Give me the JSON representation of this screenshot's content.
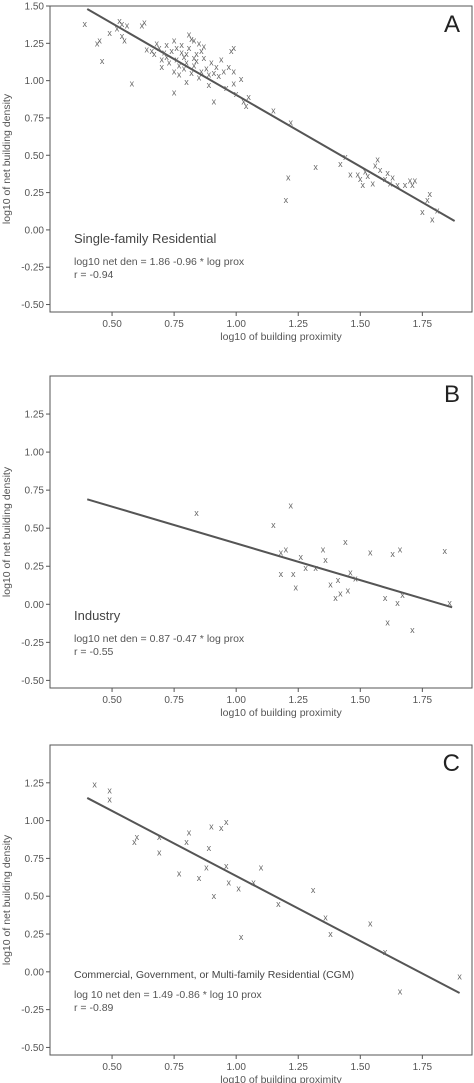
{
  "chart_data": [
    {
      "type": "scatter",
      "panel_label": "A",
      "xlabel": "log10 of building proximity",
      "ylabel": "log10 of net building density",
      "xlim": [
        0.25,
        1.95
      ],
      "ylim": [
        -0.55,
        1.5
      ],
      "xticks": [
        0.5,
        0.75,
        1.0,
        1.25,
        1.5,
        1.75
      ],
      "yticks": [
        -0.5,
        -0.25,
        0.0,
        0.25,
        0.5,
        0.75,
        1.0,
        1.25,
        1.5
      ],
      "xtick_labels": [
        "0.50",
        "0.75",
        "1.00",
        "1.25",
        "1.50",
        "1.75"
      ],
      "ytick_labels": [
        "-0.50",
        "-0.25",
        "0.00",
        "0.25",
        "0.50",
        "0.75",
        "1.00",
        "1.25",
        "1.50"
      ],
      "annotation": "Single-family Residential",
      "equation": "log10 net den = 1.86  -0.96 * log prox",
      "r_text": "r = -0.94",
      "fit_line": {
        "x": [
          0.4,
          1.88
        ],
        "y": [
          1.48,
          0.06
        ]
      },
      "marker": "x",
      "points": [
        [
          0.39,
          1.38
        ],
        [
          0.44,
          1.25
        ],
        [
          0.45,
          1.27
        ],
        [
          0.46,
          1.13
        ],
        [
          0.49,
          1.32
        ],
        [
          0.52,
          1.35
        ],
        [
          0.53,
          1.4
        ],
        [
          0.54,
          1.38
        ],
        [
          0.54,
          1.3
        ],
        [
          0.55,
          1.27
        ],
        [
          0.56,
          1.37
        ],
        [
          0.58,
          0.98
        ],
        [
          0.62,
          1.37
        ],
        [
          0.63,
          1.39
        ],
        [
          0.64,
          1.21
        ],
        [
          0.66,
          1.2
        ],
        [
          0.67,
          1.18
        ],
        [
          0.68,
          1.25
        ],
        [
          0.69,
          1.22
        ],
        [
          0.7,
          1.14
        ],
        [
          0.7,
          1.09
        ],
        [
          0.71,
          1.19
        ],
        [
          0.72,
          1.24
        ],
        [
          0.72,
          1.16
        ],
        [
          0.73,
          1.12
        ],
        [
          0.74,
          1.2
        ],
        [
          0.75,
          1.06
        ],
        [
          0.75,
          0.92
        ],
        [
          0.75,
          1.27
        ],
        [
          0.76,
          1.22
        ],
        [
          0.76,
          1.14
        ],
        [
          0.77,
          1.1
        ],
        [
          0.77,
          1.04
        ],
        [
          0.78,
          1.19
        ],
        [
          0.78,
          1.24
        ],
        [
          0.79,
          1.16
        ],
        [
          0.79,
          1.08
        ],
        [
          0.8,
          1.18
        ],
        [
          0.8,
          1.12
        ],
        [
          0.8,
          0.99
        ],
        [
          0.81,
          1.31
        ],
        [
          0.81,
          1.22
        ],
        [
          0.82,
          1.28
        ],
        [
          0.82,
          1.05
        ],
        [
          0.83,
          1.15
        ],
        [
          0.83,
          1.1
        ],
        [
          0.83,
          1.27
        ],
        [
          0.84,
          1.18
        ],
        [
          0.84,
          1.13
        ],
        [
          0.85,
          1.25
        ],
        [
          0.85,
          1.02
        ],
        [
          0.86,
          1.2
        ],
        [
          0.86,
          1.06
        ],
        [
          0.87,
          1.15
        ],
        [
          0.87,
          1.23
        ],
        [
          0.88,
          1.08
        ],
        [
          0.89,
          1.04
        ],
        [
          0.89,
          0.97
        ],
        [
          0.9,
          1.12
        ],
        [
          0.91,
          0.86
        ],
        [
          0.91,
          1.05
        ],
        [
          0.92,
          1.09
        ],
        [
          0.93,
          1.03
        ],
        [
          0.94,
          1.14
        ],
        [
          0.95,
          1.06
        ],
        [
          0.96,
          0.95
        ],
        [
          0.97,
          1.09
        ],
        [
          0.98,
          1.2
        ],
        [
          0.99,
          1.06
        ],
        [
          0.99,
          0.98
        ],
        [
          0.99,
          1.22
        ],
        [
          1.0,
          0.91
        ],
        [
          1.02,
          1.01
        ],
        [
          1.03,
          0.86
        ],
        [
          1.04,
          0.83
        ],
        [
          1.05,
          0.89
        ],
        [
          1.15,
          0.8
        ],
        [
          1.2,
          0.2
        ],
        [
          1.21,
          0.35
        ],
        [
          1.22,
          0.72
        ],
        [
          1.32,
          0.42
        ],
        [
          1.42,
          0.44
        ],
        [
          1.44,
          0.49
        ],
        [
          1.46,
          0.37
        ],
        [
          1.49,
          0.37
        ],
        [
          1.5,
          0.34
        ],
        [
          1.51,
          0.3
        ],
        [
          1.52,
          0.39
        ],
        [
          1.53,
          0.36
        ],
        [
          1.55,
          0.31
        ],
        [
          1.56,
          0.43
        ],
        [
          1.57,
          0.47
        ],
        [
          1.58,
          0.4
        ],
        [
          1.6,
          0.34
        ],
        [
          1.61,
          0.38
        ],
        [
          1.62,
          0.31
        ],
        [
          1.63,
          0.35
        ],
        [
          1.65,
          0.3
        ],
        [
          1.68,
          0.3
        ],
        [
          1.7,
          0.33
        ],
        [
          1.71,
          0.3
        ],
        [
          1.72,
          0.33
        ],
        [
          1.75,
          0.12
        ],
        [
          1.77,
          0.2
        ],
        [
          1.78,
          0.24
        ],
        [
          1.79,
          0.07
        ],
        [
          1.81,
          0.13
        ]
      ]
    },
    {
      "type": "scatter",
      "panel_label": "B",
      "xlabel": "log10 of building proximity",
      "ylabel": "log10 of net building density",
      "xlim": [
        0.25,
        1.95
      ],
      "ylim": [
        -0.55,
        1.5
      ],
      "xticks": [
        0.5,
        0.75,
        1.0,
        1.25,
        1.5,
        1.75
      ],
      "yticks": [
        -0.5,
        -0.25,
        0.0,
        0.25,
        0.5,
        0.75,
        1.0,
        1.25
      ],
      "xtick_labels": [
        "0.50",
        "0.75",
        "1.00",
        "1.25",
        "1.50",
        "1.75"
      ],
      "ytick_labels": [
        "-0.50",
        "-0.25",
        "0.00",
        "0.25",
        "0.50",
        "0.75",
        "1.00",
        "1.25"
      ],
      "annotation": "Industry",
      "equation": "log10 net den = 0.87  -0.47 * log prox",
      "r_text": "r = -0.55",
      "fit_line": {
        "x": [
          0.4,
          1.87
        ],
        "y": [
          0.69,
          -0.02
        ]
      },
      "marker": "x",
      "points": [
        [
          0.84,
          0.6
        ],
        [
          1.15,
          0.52
        ],
        [
          1.18,
          0.34
        ],
        [
          1.18,
          0.2
        ],
        [
          1.2,
          0.36
        ],
        [
          1.22,
          0.65
        ],
        [
          1.23,
          0.2
        ],
        [
          1.24,
          0.11
        ],
        [
          1.26,
          0.31
        ],
        [
          1.28,
          0.24
        ],
        [
          1.32,
          0.24
        ],
        [
          1.35,
          0.36
        ],
        [
          1.36,
          0.29
        ],
        [
          1.38,
          0.13
        ],
        [
          1.4,
          0.04
        ],
        [
          1.41,
          0.16
        ],
        [
          1.42,
          0.07
        ],
        [
          1.44,
          0.41
        ],
        [
          1.45,
          0.09
        ],
        [
          1.46,
          0.21
        ],
        [
          1.48,
          0.17
        ],
        [
          1.54,
          0.34
        ],
        [
          1.6,
          0.04
        ],
        [
          1.61,
          -0.12
        ],
        [
          1.63,
          0.33
        ],
        [
          1.65,
          0.01
        ],
        [
          1.66,
          0.36
        ],
        [
          1.67,
          0.06
        ],
        [
          1.71,
          -0.17
        ],
        [
          1.84,
          0.35
        ],
        [
          1.86,
          0.01
        ]
      ]
    },
    {
      "type": "scatter",
      "panel_label": "C",
      "xlabel": "log10 of building proximity",
      "ylabel": "log10 of net building density",
      "xlim": [
        0.25,
        1.95
      ],
      "ylim": [
        -0.55,
        1.5
      ],
      "xticks": [
        0.5,
        0.75,
        1.0,
        1.25,
        1.5,
        1.75
      ],
      "yticks": [
        -0.5,
        -0.25,
        0.0,
        0.25,
        0.5,
        0.75,
        1.0,
        1.25
      ],
      "xtick_labels": [
        "0.50",
        "0.75",
        "1.00",
        "1.25",
        "1.50",
        "1.75"
      ],
      "ytick_labels": [
        "-0.50",
        "-0.25",
        "0.00",
        "0.25",
        "0.50",
        "0.75",
        "1.00",
        "1.25"
      ],
      "annotation": "Commercial, Government, or Multi-family Residential (CGM)",
      "equation": "log 10  net den = 1.49  -0.86 * log 10 prox",
      "r_text": "r = -0.89",
      "fit_line": {
        "x": [
          0.4,
          1.9
        ],
        "y": [
          1.15,
          -0.14
        ]
      },
      "marker": "x",
      "points": [
        [
          0.43,
          1.24
        ],
        [
          0.49,
          1.2
        ],
        [
          0.49,
          1.14
        ],
        [
          0.59,
          0.86
        ],
        [
          0.6,
          0.89
        ],
        [
          0.69,
          0.89
        ],
        [
          0.69,
          0.79
        ],
        [
          0.77,
          0.65
        ],
        [
          0.8,
          0.86
        ],
        [
          0.81,
          0.92
        ],
        [
          0.85,
          0.62
        ],
        [
          0.88,
          0.69
        ],
        [
          0.89,
          0.82
        ],
        [
          0.9,
          0.96
        ],
        [
          0.91,
          0.5
        ],
        [
          0.94,
          0.95
        ],
        [
          0.96,
          0.7
        ],
        [
          0.96,
          0.99
        ],
        [
          0.97,
          0.59
        ],
        [
          1.01,
          0.55
        ],
        [
          1.02,
          0.23
        ],
        [
          1.07,
          0.59
        ],
        [
          1.1,
          0.69
        ],
        [
          1.17,
          0.45
        ],
        [
          1.31,
          0.54
        ],
        [
          1.36,
          0.36
        ],
        [
          1.38,
          0.25
        ],
        [
          1.54,
          0.32
        ],
        [
          1.6,
          0.13
        ],
        [
          1.66,
          -0.13
        ],
        [
          1.9,
          -0.03
        ]
      ]
    }
  ]
}
